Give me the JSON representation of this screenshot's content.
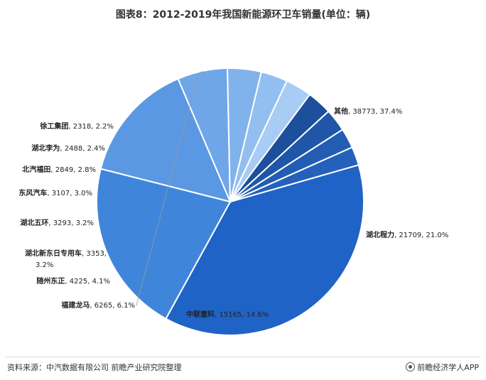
{
  "chart_data": {
    "type": "pie",
    "title": "图表8：2012-2019年我国新能源环卫车销量(单位：辆)",
    "slices": [
      {
        "label": "其他",
        "value": 38773,
        "pct": "37.4%",
        "color": "#1f63c6"
      },
      {
        "label": "湖北程力",
        "value": 21709,
        "pct": "21.0%",
        "color": "#3f86db"
      },
      {
        "label": "中联重科",
        "value": 15165,
        "pct": "14.6%",
        "color": "#5a98e3"
      },
      {
        "label": "福建龙马",
        "value": 6265,
        "pct": "6.1%",
        "color": "#6ea6e8"
      },
      {
        "label": "随州东正",
        "value": 4225,
        "pct": "4.1%",
        "color": "#80b3ec"
      },
      {
        "label": "湖北新东日专用车",
        "value": 3353,
        "pct": "3.2%",
        "color": "#93bff0"
      },
      {
        "label": "湖北五环",
        "value": 3293,
        "pct": "3.2%",
        "color": "#a8ccf4"
      },
      {
        "label": "东风汽车",
        "value": 3107,
        "pct": "3.0%",
        "color": "#1c4f9c"
      },
      {
        "label": "北汽福田",
        "value": 2849,
        "pct": "2.8%",
        "color": "#1f56a8"
      },
      {
        "label": "湖北李为",
        "value": 2488,
        "pct": "2.4%",
        "color": "#225db3"
      },
      {
        "label": "徐工集团",
        "value": 2318,
        "pct": "2.2%",
        "color": "#2561bb"
      }
    ]
  },
  "footer": {
    "source": "资料来源：中汽数据有限公司 前瞻产业研究院整理",
    "brand": "前瞻经济学人APP"
  }
}
